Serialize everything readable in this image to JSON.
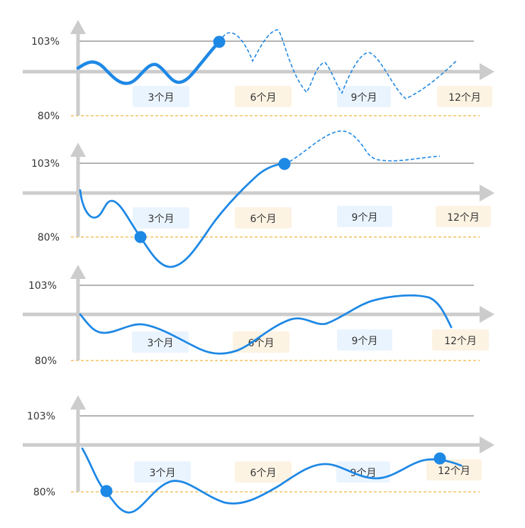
{
  "colors": {
    "line": "#1e88e5",
    "axis": "#cccccc",
    "gridline": "#333333",
    "baseline": "#f0b33c",
    "tag_blue": "#eaf4fe",
    "tag_orange": "#fdf3e3",
    "text": "#333333"
  },
  "panels": [
    {
      "label_top": "103%",
      "label_bottom": "80%",
      "tags": [
        "3个月",
        "6个月",
        "9个月",
        "12个月"
      ]
    },
    {
      "label_top": "103%",
      "label_bottom": "80%",
      "tags": [
        "3个月",
        "6个月",
        "9个月",
        "12个月"
      ]
    },
    {
      "label_top": "103%",
      "label_bottom": "80%",
      "tags": [
        "3个月",
        "6个月",
        "9个月",
        "12个月"
      ]
    },
    {
      "label_top": "103%",
      "label_bottom": "80%",
      "tags": [
        "3个月",
        "6个月",
        "9个月",
        "12个月"
      ]
    }
  ]
}
